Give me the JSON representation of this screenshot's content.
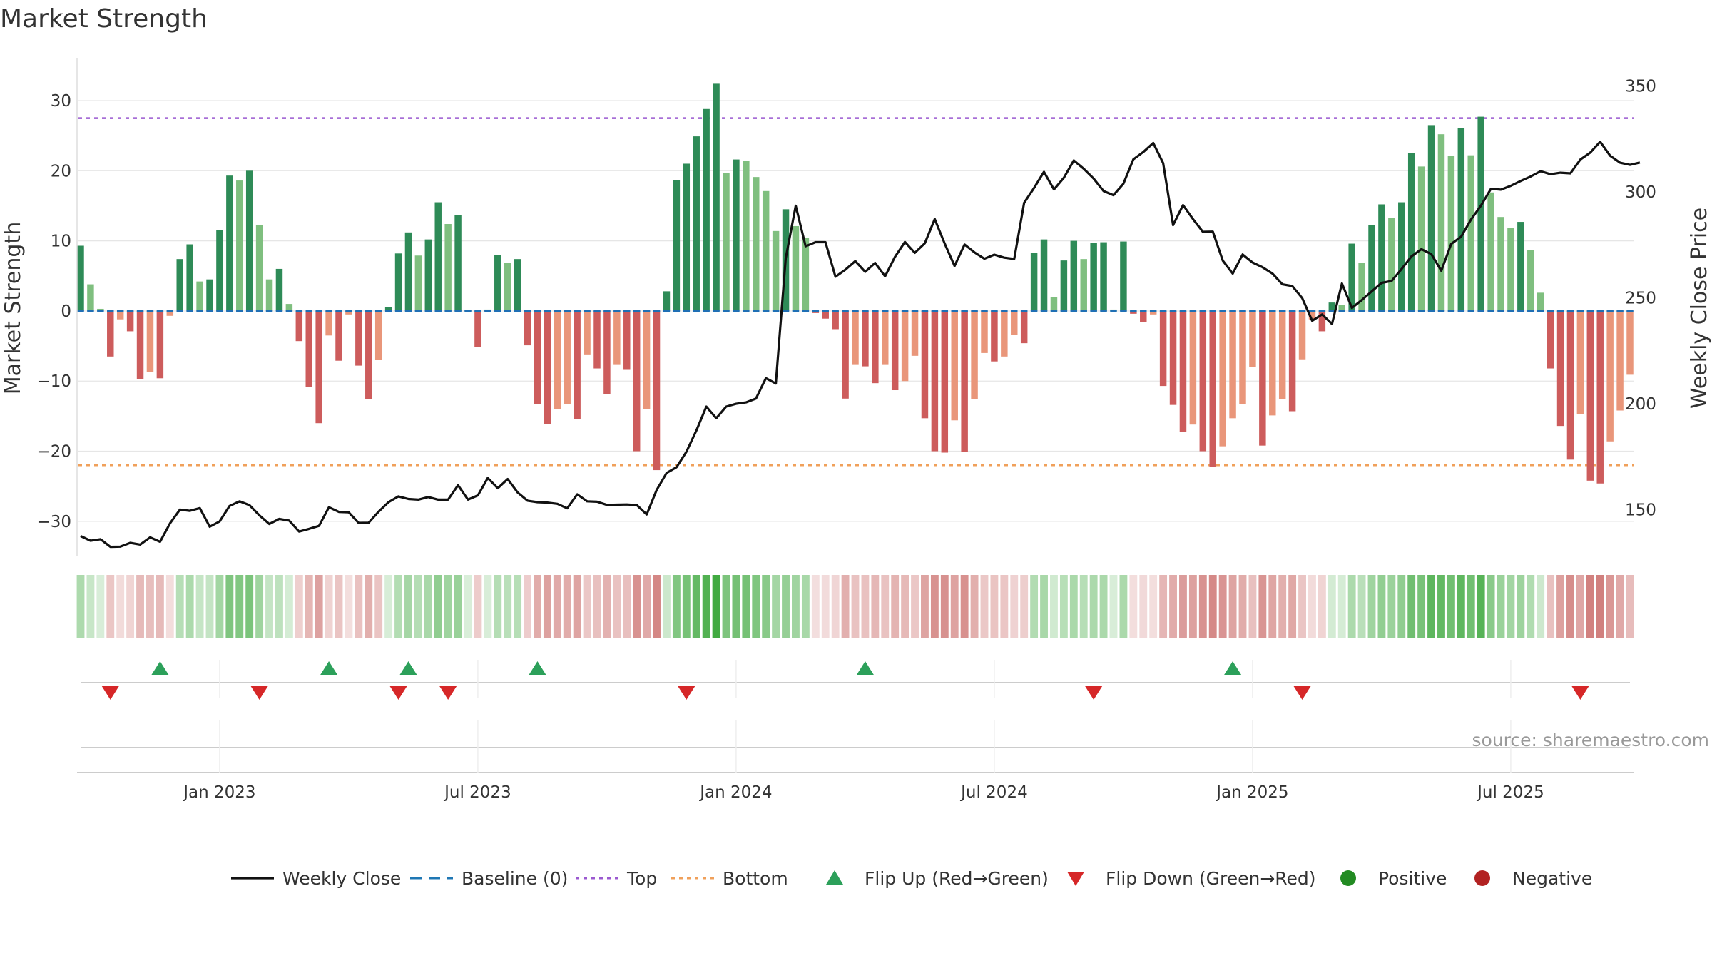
{
  "chart_data": {
    "type": "bar",
    "title": "Market Strength",
    "ylabel_left": "Market Strength",
    "ylabel_right": "Weekly Close Price",
    "source": "source: sharemaestro.com",
    "ylim_left": [
      -35,
      36
    ],
    "ylim_right": [
      128,
      363
    ],
    "yticks_left": [
      {
        "value": 30,
        "label": "30"
      },
      {
        "value": 20,
        "label": "20"
      },
      {
        "value": 10,
        "label": "10"
      },
      {
        "value": 0,
        "label": "0"
      },
      {
        "value": -10,
        "label": "−10"
      },
      {
        "value": -20,
        "label": "−20"
      },
      {
        "value": -30,
        "label": "−30"
      }
    ],
    "yticks_right": [
      {
        "value": 350,
        "label": "350"
      },
      {
        "value": 300,
        "label": "300"
      },
      {
        "value": 250,
        "label": "250"
      },
      {
        "value": 200,
        "label": "200"
      },
      {
        "value": 150,
        "label": "150"
      }
    ],
    "x_start": "2022-09-26",
    "x_end": "2025-09-22",
    "xticks": [
      {
        "week": 14,
        "label": "Jan 2023"
      },
      {
        "week": 40,
        "label": "Jul 2023"
      },
      {
        "week": 66,
        "label": "Jan 2024"
      },
      {
        "week": 92,
        "label": "Jul 2024"
      },
      {
        "week": 118,
        "label": "Jan 2025"
      },
      {
        "week": 144,
        "label": "Jul 2025"
      }
    ],
    "top_level": 27.5,
    "bottom_level": -22,
    "strength": [
      9.3,
      3.8,
      0.3,
      -6.5,
      -1.2,
      -2.9,
      -9.7,
      -8.7,
      -9.6,
      -0.7,
      7.4,
      9.5,
      4.2,
      4.5,
      11.5,
      19.3,
      18.6,
      20.0,
      12.3,
      4.5,
      6.0,
      1.0,
      -4.3,
      -10.8,
      -16.0,
      -3.5,
      -7.1,
      -0.5,
      -7.8,
      -12.6,
      -7.0,
      0.5,
      8.2,
      11.2,
      7.9,
      10.2,
      15.5,
      12.4,
      13.7,
      0.1,
      -5.1,
      0.2,
      8.0,
      6.9,
      7.4,
      -4.9,
      -13.3,
      -16.1,
      -14.0,
      -13.3,
      -15.4,
      -6.2,
      -8.2,
      -11.9,
      -7.6,
      -8.3,
      -20.0,
      -14.0,
      -22.7,
      2.8,
      18.7,
      21.0,
      24.9,
      28.8,
      32.4,
      19.7,
      21.6,
      21.4,
      19.1,
      17.1,
      11.4,
      14.5,
      12.1,
      10.4,
      -0.3,
      -1.1,
      -2.6,
      -12.5,
      -7.6,
      -7.9,
      -10.3,
      -7.6,
      -11.3,
      -10.0,
      -6.4,
      -15.3,
      -20.0,
      -20.2,
      -15.6,
      -20.1,
      -12.6,
      -6.0,
      -7.2,
      -6.5,
      -3.4,
      -4.6,
      8.3,
      10.2,
      2.0,
      7.2,
      10.0,
      7.4,
      9.7,
      9.8,
      0.2,
      9.9,
      -0.4,
      -1.6,
      -0.5,
      -10.7,
      -13.4,
      -17.3,
      -16.2,
      -20.0,
      -22.2,
      -19.3,
      -15.3,
      -13.3,
      -8.0,
      -19.2,
      -14.9,
      -12.6,
      -14.3,
      -6.9,
      -1.2,
      -2.9,
      1.2,
      0.9,
      9.6,
      6.9,
      12.3,
      15.2,
      13.3,
      15.5,
      22.5,
      20.6,
      26.5,
      25.2,
      22.1,
      26.1,
      22.2,
      27.7,
      16.9,
      13.4,
      11.8,
      12.7,
      8.7,
      2.6,
      -8.2,
      -16.4,
      -21.2,
      -14.7,
      -24.2,
      -24.6,
      -18.6,
      -14.2,
      -9.1
    ],
    "weekly_close": [
      137.6,
      135.4,
      136.1,
      132.5,
      132.6,
      134.4,
      133.6,
      137.0,
      134.9,
      143.6,
      150.1,
      149.5,
      150.8,
      142.0,
      144.5,
      151.8,
      154.0,
      152.2,
      147.4,
      143.3,
      145.7,
      144.9,
      139.7,
      141.0,
      142.4,
      151.2,
      149.0,
      148.8,
      143.8,
      143.9,
      149.1,
      153.6,
      156.3,
      155.1,
      154.8,
      156.0,
      154.8,
      154.8,
      161.6,
      154.8,
      156.8,
      165.0,
      160.2,
      164.5,
      158.2,
      154.3,
      153.6,
      153.4,
      152.8,
      150.7,
      157.3,
      154.0,
      153.8,
      152.3,
      152.4,
      152.5,
      152.2,
      147.8,
      159.3,
      167.4,
      170.1,
      177.4,
      187.4,
      198.7,
      193.2,
      198.7,
      200.0,
      200.7,
      202.5,
      212.1,
      209.6,
      268.7,
      293.5,
      274.4,
      276.3,
      276.3,
      260.0,
      263.3,
      267.4,
      262.3,
      266.5,
      260.2,
      269.4,
      276.4,
      271.3,
      275.8,
      287.2,
      275.7,
      265.1,
      275.2,
      271.5,
      268.5,
      270.4,
      269.0,
      268.4,
      294.9,
      301.9,
      309.5,
      301.2,
      306.7,
      314.9,
      311.0,
      306.3,
      300.4,
      298.5,
      303.9,
      315.4,
      318.9,
      323.1,
      313.6,
      284.4,
      293.8,
      287.2,
      281.2,
      281.3,
      267.6,
      261.5,
      270.5,
      266.7,
      264.5,
      261.5,
      256.4,
      255.6,
      249.9,
      239.2,
      242.2,
      237.7,
      256.8,
      245.3,
      249.0,
      253.1,
      257.1,
      258.0,
      263.6,
      269.6,
      273.0,
      270.7,
      262.8,
      275.5,
      278.9,
      287.0,
      293.6,
      301.5,
      301.1,
      302.9,
      305.2,
      307.3,
      309.8,
      308.4,
      309.1,
      308.8,
      315.3,
      318.6,
      323.7,
      317.1,
      313.8,
      312.8,
      313.9
    ],
    "flip_up_weeks": [
      8,
      25,
      33,
      46,
      79,
      116
    ],
    "flip_down_weeks": [
      3,
      18,
      32,
      37,
      61,
      102,
      123,
      151
    ],
    "legend": [
      {
        "kind": "line",
        "label": "Weekly Close",
        "color": "#111111"
      },
      {
        "kind": "dash",
        "label": "Baseline (0)",
        "color": "#1f77b4"
      },
      {
        "kind": "dot",
        "label": "Top",
        "color": "#9b59d0"
      },
      {
        "kind": "dot",
        "label": "Bottom",
        "color": "#f0a05a"
      },
      {
        "kind": "tri-up",
        "label": "Flip Up (Red→Green)",
        "color": "#2ca05a"
      },
      {
        "kind": "tri-down",
        "label": "Flip Down (Green→Red)",
        "color": "#d62728"
      },
      {
        "kind": "circle",
        "label": "Positive",
        "color": "#228b22"
      },
      {
        "kind": "circle",
        "label": "Negative",
        "color": "#b22222"
      }
    ],
    "colors": {
      "pos_strong": "#2e8b57",
      "pos_weak": "#7fbf7f",
      "neg_strong": "#cd5c5c",
      "neg_weak": "#e9967a",
      "heat_pos": "#2ca02c",
      "heat_neg": "#c0504d",
      "flip_up": "#2ca05a",
      "flip_down": "#d62728",
      "grid": "#e6e6e6"
    }
  }
}
